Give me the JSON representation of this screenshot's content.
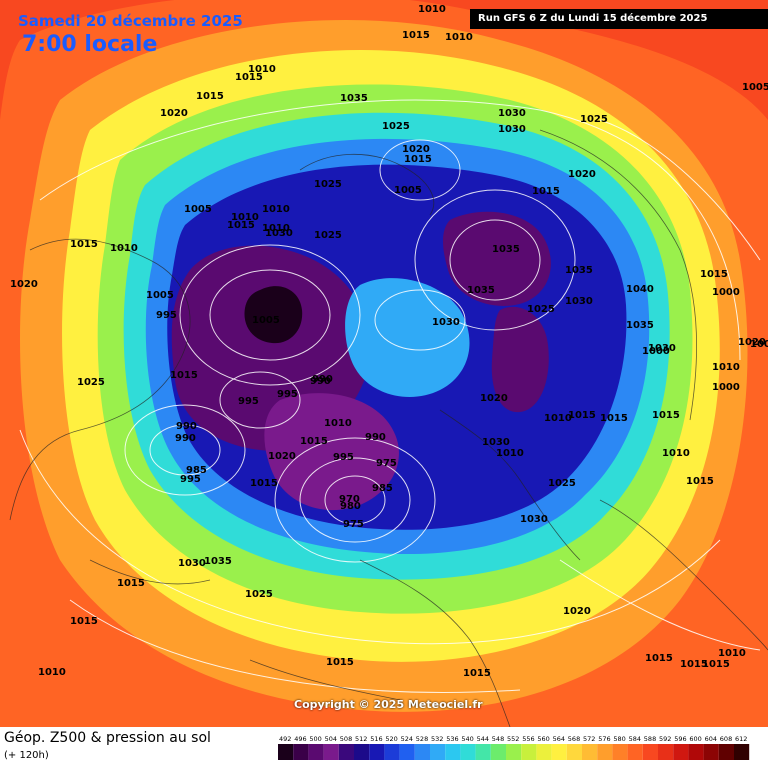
{
  "header": {
    "date": "Samedi 20 décembre 2025",
    "time": "7:00 locale",
    "run_info": "Run GFS 6 Z du Lundi 15 décembre 2025"
  },
  "footer": {
    "title": "Géop. Z500 & pression au sol",
    "subtitle": "(+ 120h)",
    "copyright": "Copyright © 2025 Meteociel.fr"
  },
  "legend": {
    "labels": [
      "492",
      "496",
      "500",
      "504",
      "508",
      "512",
      "516",
      "520",
      "524",
      "528",
      "532",
      "536",
      "540",
      "544",
      "548",
      "552",
      "556",
      "560",
      "564",
      "568",
      "572",
      "576",
      "580",
      "584",
      "588",
      "592",
      "596",
      "600",
      "604",
      "608",
      "612"
    ],
    "colors": [
      "#1a001a",
      "#3a0048",
      "#5a0a70",
      "#7a1a8c",
      "#3a087c",
      "#1c0a8a",
      "#1818b4",
      "#1c3cd8",
      "#2060f0",
      "#2c88f4",
      "#30aaf6",
      "#2cc8f0",
      "#30dcd8",
      "#44e6a8",
      "#6cec6c",
      "#9af04c",
      "#c8f03c",
      "#ecf03c",
      "#fff040",
      "#ffd83c",
      "#ffbc34",
      "#ff9e2c",
      "#ff8028",
      "#ff6424",
      "#f84820",
      "#e83018",
      "#d01810",
      "#b00808",
      "#8c0404",
      "#600000",
      "#300000"
    ]
  },
  "pressure_labels": [
    "1010",
    "1015",
    "1010",
    "1015",
    "1010",
    "1015",
    "1005",
    "1020",
    "1035",
    "1030",
    "1025",
    "1030",
    "1025",
    "1020",
    "1025",
    "1015",
    "1005",
    "1015",
    "1020",
    "1010",
    "1015",
    "1010",
    "1005",
    "1015",
    "1010",
    "1010",
    "1030",
    "1025",
    "1035",
    "1035",
    "1035",
    "1015",
    "1000",
    "1020",
    "1005",
    "995",
    "1005",
    "1025",
    "1030",
    "1030",
    "1040",
    "1035",
    "1030",
    "1000",
    "1020",
    "1025",
    "995",
    "990",
    "1015",
    "995",
    "990",
    "1000",
    "1010",
    "990",
    "1010",
    "1000",
    "990",
    "1015",
    "990",
    "995",
    "1020",
    "1020",
    "1010",
    "1015",
    "1015",
    "1015",
    "1010",
    "975",
    "1030",
    "985",
    "985",
    "995",
    "1015",
    "970",
    "980",
    "1010",
    "975",
    "1025",
    "1030",
    "1015",
    "1030",
    "1035",
    "1015",
    "1025",
    "1015",
    "1020",
    "1015",
    "1015",
    "1015",
    "1015",
    "1015",
    "1010",
    "1010"
  ]
}
